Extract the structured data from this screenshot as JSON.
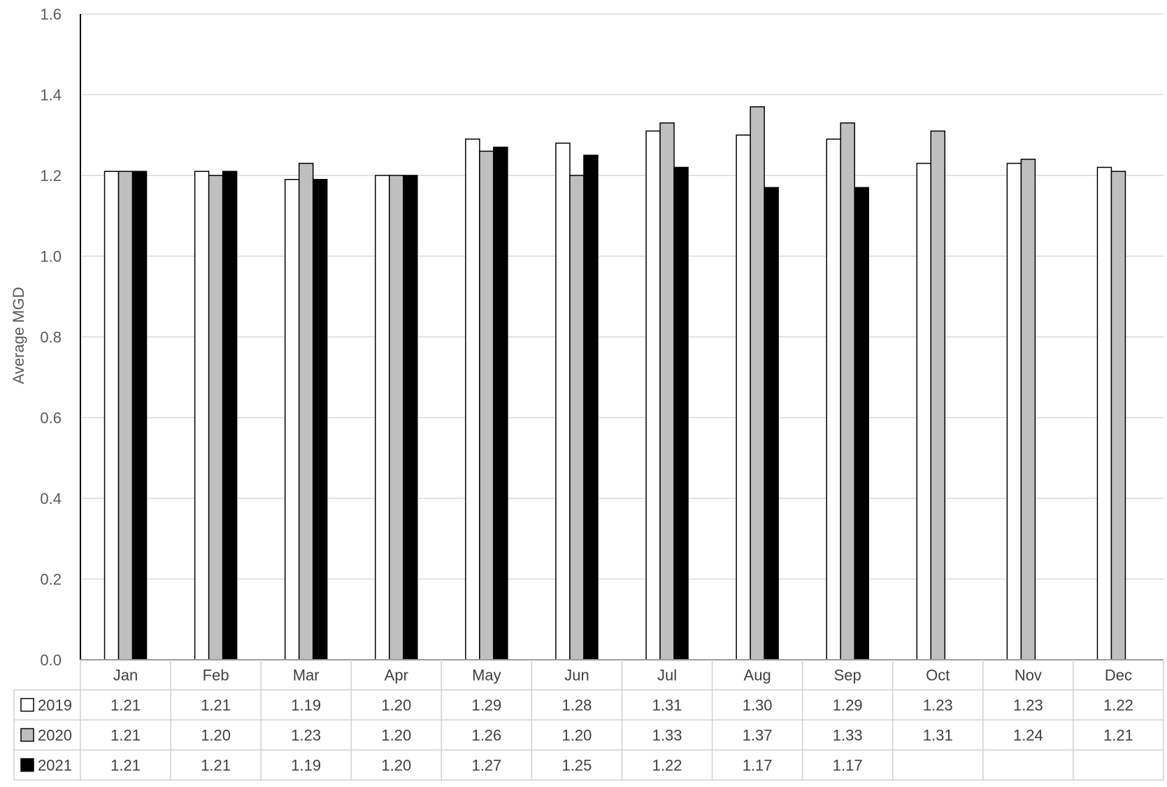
{
  "chart_data": {
    "type": "bar",
    "title": "",
    "xlabel": "",
    "ylabel": "Average MGD",
    "ylim": [
      0,
      1.6
    ],
    "yticks": [
      "0.0",
      "0.2",
      "0.4",
      "0.6",
      "0.8",
      "1.0",
      "1.2",
      "1.4",
      "1.6"
    ],
    "grid": true,
    "legend": "data table below the plot",
    "categories": [
      "Jan",
      "Feb",
      "Mar",
      "Apr",
      "May",
      "Jun",
      "Jul",
      "Aug",
      "Sep",
      "Oct",
      "Nov",
      "Dec"
    ],
    "series": [
      {
        "name": "2019",
        "color": "#ffffff",
        "values": [
          1.21,
          1.21,
          1.19,
          1.2,
          1.29,
          1.28,
          1.31,
          1.3,
          1.29,
          1.23,
          1.23,
          1.22
        ],
        "labels": [
          "1.21",
          "1.21",
          "1.19",
          "1.20",
          "1.29",
          "1.28",
          "1.31",
          "1.30",
          "1.29",
          "1.23",
          "1.23",
          "1.22"
        ]
      },
      {
        "name": "2020",
        "color": "#bfbfbf",
        "values": [
          1.21,
          1.2,
          1.23,
          1.2,
          1.26,
          1.2,
          1.33,
          1.37,
          1.33,
          1.31,
          1.24,
          1.21
        ],
        "labels": [
          "1.21",
          "1.20",
          "1.23",
          "1.20",
          "1.26",
          "1.20",
          "1.33",
          "1.37",
          "1.33",
          "1.31",
          "1.24",
          "1.21"
        ]
      },
      {
        "name": "2021",
        "color": "#000000",
        "values": [
          1.21,
          1.21,
          1.19,
          1.2,
          1.27,
          1.25,
          1.22,
          1.17,
          1.17,
          null,
          null,
          null
        ],
        "labels": [
          "1.21",
          "1.21",
          "1.19",
          "1.20",
          "1.27",
          "1.25",
          "1.22",
          "1.17",
          "1.17",
          "",
          "",
          ""
        ]
      }
    ]
  }
}
